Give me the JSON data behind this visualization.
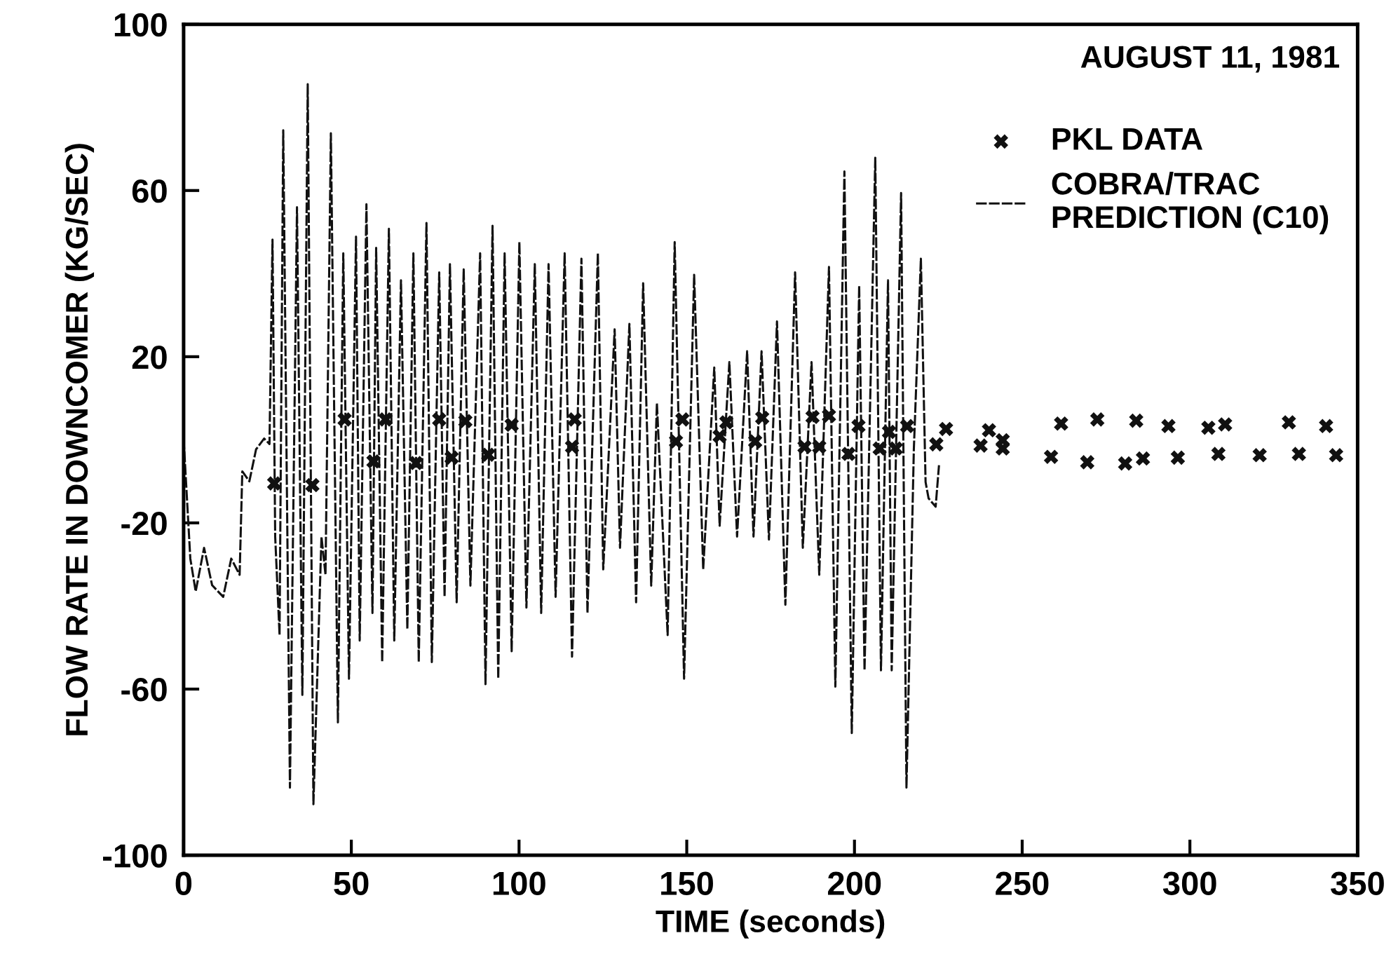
{
  "chart_data": {
    "type": "line",
    "xlabel": "TIME (seconds)",
    "ylabel": "FLOW RATE IN DOWNCOMER (KG/SEC)",
    "annotations": [
      "AUGUST 11, 1981"
    ],
    "xlim": [
      0,
      350
    ],
    "xticks": [
      0,
      50,
      100,
      150,
      200,
      250,
      300,
      350
    ],
    "ylim": [
      -100,
      100
    ],
    "yticks": [
      -100,
      -60,
      -20,
      20,
      60,
      100
    ],
    "grid": false,
    "legend": "top right",
    "series": [
      {
        "name": "COBRA/TRAC\nPREDICTION (C10)",
        "line_style": "dashed",
        "marker": "none",
        "color": "#111111",
        "x": [
          0,
          2,
          3.6,
          6.1,
          8.5,
          11.8,
          14.2,
          16.7,
          17.5,
          19.6,
          21.6,
          24,
          25.6,
          26.5,
          27.3,
          28.6,
          29.7,
          31.7,
          33.8,
          35.4,
          37,
          38.7,
          41.1,
          42.3,
          43.9,
          46,
          47.6,
          49.3,
          51.4,
          52.5,
          54.5,
          56.3,
          57.4,
          59.2,
          61.2,
          62.8,
          64.8,
          66.7,
          68.5,
          70.1,
          72.4,
          74,
          76.2,
          77.8,
          79.4,
          81.4,
          83.5,
          85.5,
          88.4,
          90,
          92.1,
          93.8,
          95.7,
          97.8,
          100.1,
          102.2,
          104.7,
          106.6,
          108.8,
          110.9,
          113.6,
          115.8,
          118.6,
          120.4,
          123.5,
          125.1,
          128.5,
          130.1,
          132.9,
          134.9,
          137,
          139.4,
          141.1,
          144.3,
          146.4,
          149.2,
          152.2,
          154.9,
          158.2,
          159.8,
          162.7,
          165,
          168,
          169.9,
          172.3,
          174.5,
          176.9,
          179.4,
          182.3,
          184.6,
          187.2,
          189.5,
          192.4,
          194.3,
          197,
          199.2,
          201.4,
          203,
          206.2,
          207.9,
          210,
          211.1,
          213.9,
          215.5,
          217.7,
          219.8,
          221.2,
          222.1,
          224.2,
          225.2
        ],
        "values": [
          0.3,
          -28.6,
          -36.5,
          -26,
          -35,
          -37.8,
          -28.6,
          -32.5,
          -7.6,
          -10,
          -2.3,
          0.3,
          -1,
          48.2,
          -23.3,
          -47,
          74.5,
          -83.7,
          56,
          -61.4,
          85.6,
          -87.7,
          -23.3,
          -32.5,
          73.8,
          -68,
          44.9,
          -57.5,
          48.9,
          -48.3,
          56.7,
          -41.7,
          46.2,
          -53.5,
          50.8,
          -48.3,
          38.4,
          -45.6,
          44.9,
          -53.5,
          52.2,
          -53.5,
          40.3,
          -37.8,
          42.3,
          -39.1,
          41,
          -35.1,
          44.9,
          -58.8,
          51.5,
          -57.5,
          44.9,
          -50.9,
          47.6,
          -40.4,
          42.3,
          -41.7,
          42.3,
          -37.8,
          44.9,
          -52.2,
          43.6,
          -41.7,
          44.9,
          -31.2,
          26.6,
          -26,
          27.9,
          -39.1,
          37.7,
          -35.1,
          8.8,
          -47,
          47.6,
          -57.5,
          39.7,
          -31.2,
          17.4,
          -20.7,
          18.7,
          -23.3,
          21.3,
          -23.3,
          21.3,
          -24,
          28.5,
          -39.7,
          40.3,
          -26,
          18.7,
          -32.5,
          41.6,
          -59.4,
          64.6,
          -70.6,
          37.1,
          -55.5,
          67.9,
          -55.5,
          38.4,
          -55.5,
          59.4,
          -83.7,
          -2.3,
          43.6,
          -10.2,
          -14.1,
          -16.1,
          -6.1
        ]
      },
      {
        "name": "PKL DATA",
        "type": "scatter",
        "marker": "cross",
        "color": "#111111",
        "x": [
          27,
          38.4,
          48,
          56.6,
          60.2,
          69.3,
          76.2,
          79.9,
          84,
          90.8,
          97.8,
          115.8,
          116.6,
          146.8,
          148.7,
          159.8,
          161.8,
          170.4,
          172.5,
          185.1,
          187.5,
          189.5,
          192.4,
          198.2,
          201.2,
          207.5,
          210.3,
          212.3,
          215.7,
          224.4,
          227.3,
          237.6,
          240.1,
          244.2,
          244.2,
          258.6,
          261.6,
          269.4,
          272.4,
          280.7,
          284,
          286,
          293.6,
          296.4,
          305.5,
          308.5,
          310.5,
          320.8,
          329.5,
          332.5,
          340.6,
          343.6
        ],
        "values": [
          -10.5,
          -10.9,
          4.9,
          -5.2,
          4.9,
          -5.6,
          4.9,
          -4.3,
          4.5,
          -3.6,
          3.6,
          -1.7,
          4.9,
          -0.4,
          4.9,
          0.9,
          4.2,
          -0.4,
          5.3,
          -1.7,
          5.5,
          -1.7,
          5.8,
          -3.4,
          3.3,
          -2.1,
          1.9,
          -2.1,
          3.3,
          -1.1,
          2.6,
          -1.4,
          2.3,
          -0.1,
          -2.1,
          -4.1,
          3.9,
          -5.4,
          4.9,
          -5.7,
          4.6,
          -4.5,
          3.3,
          -4.3,
          2.9,
          -3.4,
          3.7,
          -3.7,
          4.2,
          -3.4,
          3.3,
          -3.7
        ]
      }
    ]
  }
}
